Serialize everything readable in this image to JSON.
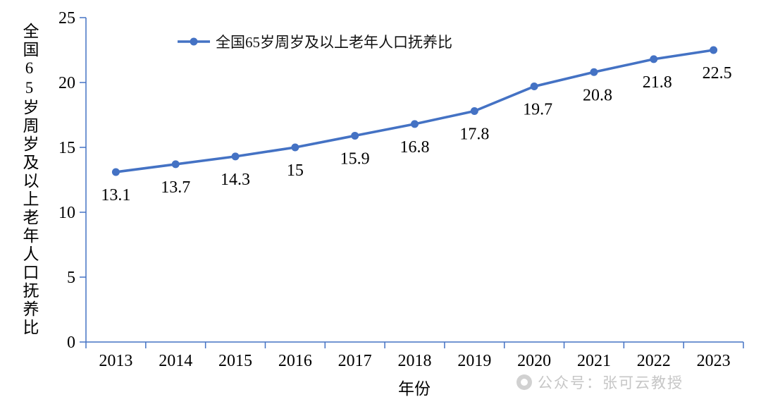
{
  "chart_data": {
    "type": "line",
    "categories": [
      "2013",
      "2014",
      "2015",
      "2016",
      "2017",
      "2018",
      "2019",
      "2020",
      "2021",
      "2022",
      "2023"
    ],
    "series": [
      {
        "name": "全国65岁周岁及以上老年人口抚养比",
        "values": [
          13.1,
          13.7,
          14.3,
          15,
          15.9,
          16.8,
          17.8,
          19.7,
          20.8,
          21.8,
          22.5
        ]
      }
    ],
    "data_labels": [
      "13.1",
      "13.7",
      "14.3",
      "15",
      "15.9",
      "16.8",
      "17.8",
      "19.7",
      "20.8",
      "21.8",
      "22.5"
    ],
    "title": "",
    "xlabel": "年份",
    "ylabel": "全国65岁周岁及以上老年人口抚养比",
    "ylim": [
      0,
      25
    ],
    "yticks": [
      0,
      5,
      10,
      15,
      20,
      25
    ],
    "grid": false,
    "legend": {
      "position": "top",
      "label": "全国65岁周岁及以上老年人口抚养比"
    },
    "line_color": "#4472C4",
    "axis_color": "#4472C4"
  },
  "watermark": {
    "text": "公众号：张可云教授"
  }
}
